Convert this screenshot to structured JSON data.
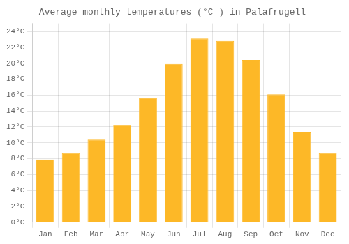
{
  "chart_data": {
    "type": "bar",
    "title": "Average monthly temperatures (°C ) in Palafrugell",
    "categories": [
      "Jan",
      "Feb",
      "Mar",
      "Apr",
      "May",
      "Jun",
      "Jul",
      "Aug",
      "Sep",
      "Oct",
      "Nov",
      "Dec"
    ],
    "values": [
      7.9,
      8.7,
      10.4,
      12.2,
      15.6,
      19.9,
      23.1,
      22.8,
      20.4,
      16.1,
      11.3,
      8.7
    ],
    "color": "#FDB827",
    "ylim": [
      0,
      25
    ],
    "yticks": [
      {
        "value": 0,
        "label": "0°C"
      },
      {
        "value": 2,
        "label": "2°C"
      },
      {
        "value": 4,
        "label": "4°C"
      },
      {
        "value": 6,
        "label": "6°C"
      },
      {
        "value": 8,
        "label": "8°C"
      },
      {
        "value": 10,
        "label": "10°C"
      },
      {
        "value": 12,
        "label": "12°C"
      },
      {
        "value": 14,
        "label": "14°C"
      },
      {
        "value": 16,
        "label": "16°C"
      },
      {
        "value": 18,
        "label": "18°C"
      },
      {
        "value": 20,
        "label": "20°C"
      },
      {
        "value": 22,
        "label": "22°C"
      },
      {
        "value": 24,
        "label": "24°C"
      }
    ],
    "grid": true
  }
}
